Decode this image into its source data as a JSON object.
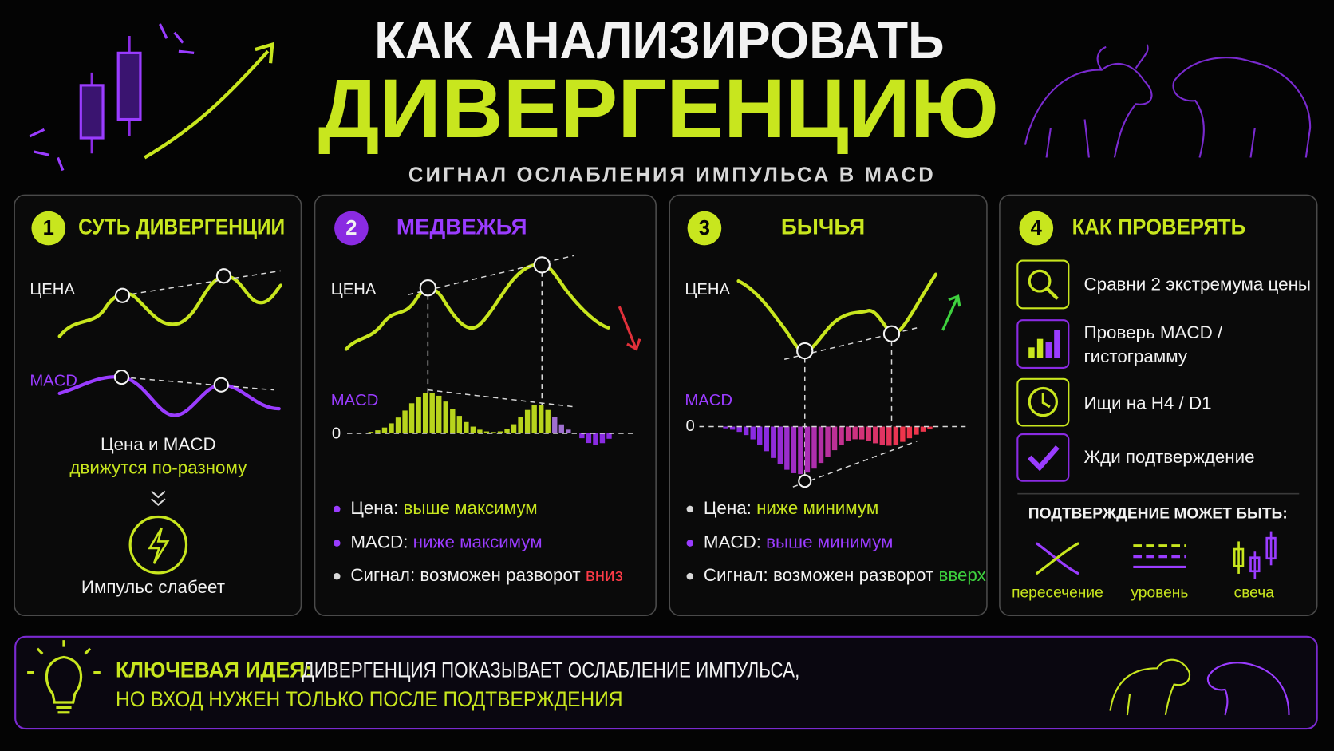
{
  "header": {
    "title_line1": "КАК АНАЛИЗИРОВАТЬ",
    "title_line2": "ДИВЕРГЕНЦИЮ",
    "subtitle": "СИГНАЛ ОСЛАБЛЕНИЯ ИМПУЛЬСА В MACD"
  },
  "panels": [
    {
      "number": "1",
      "title": "СУТЬ ДИВЕРГЕНЦИИ",
      "price_label": "ЦЕНА",
      "macd_label": "MACD",
      "text_line1": "Цена и MACD",
      "text_line2": "движутся по-разному",
      "result": "Импульс слабеет"
    },
    {
      "number": "2",
      "title": "МЕДВЕЖЬЯ",
      "price_label": "ЦЕНА",
      "macd_label": "MACD",
      "zero_label": "0",
      "bullets": [
        {
          "label": "Цена:",
          "value": "выше максимум"
        },
        {
          "label": "MACD:",
          "value": "ниже максимум"
        },
        {
          "label": "Сигнал: возможен разворот",
          "value": "вниз"
        }
      ]
    },
    {
      "number": "3",
      "title": "БЫЧЬЯ",
      "price_label": "ЦЕНА",
      "macd_label": "MACD",
      "zero_label": "0",
      "bullets": [
        {
          "label": "Цена:",
          "value": "ниже минимум"
        },
        {
          "label": "MACD:",
          "value": "выше минимум"
        },
        {
          "label": "Сигнал: возможен разворот",
          "value": "вверх"
        }
      ]
    },
    {
      "number": "4",
      "title": "КАК ПРОВЕРЯТЬ",
      "checks": [
        [
          "Сравни 2 экстремума цены"
        ],
        [
          "Проверь MACD /",
          "гистограмму"
        ],
        [
          "Ищи на H4 / D1"
        ],
        [
          "Жди подтверждение"
        ]
      ],
      "confirm_title": "ПОДТВЕРЖДЕНИЕ МОЖЕТ БЫТЬ:",
      "confirm_types": [
        "пересечение",
        "уровень",
        "свеча"
      ]
    }
  ],
  "footer": {
    "label": "КЛЮЧЕВАЯ ИДЕЯ:",
    "line1": "ДИВЕРГЕНЦИЯ ПОКАЗЫВАЕТ ОСЛАБЛЕНИЕ ИМПУЛЬСА,",
    "line2": "НО ВХОД НУЖЕН ТОЛЬКО ПОСЛЕ ПОДТВЕРЖДЕНИЯ"
  }
}
